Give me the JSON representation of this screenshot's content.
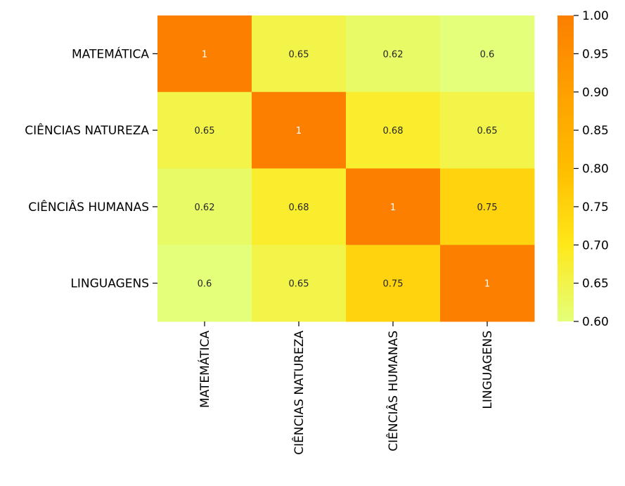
{
  "chart_data": {
    "type": "heatmap",
    "row_labels": [
      "MATEMÁTICA",
      "CIÊNCIAS NATUREZA",
      "CIÊNCIÂS HUMANAS",
      "LINGUAGENS"
    ],
    "col_labels": [
      "MATEMÁTICA",
      "CIÊNCIAS NATUREZA",
      "CIÊNCIÂS HUMANAS",
      "LINGUAGENS"
    ],
    "values": [
      [
        1,
        0.65,
        0.62,
        0.6
      ],
      [
        0.65,
        1,
        0.68,
        0.65
      ],
      [
        0.62,
        0.68,
        1,
        0.75
      ],
      [
        0.6,
        0.65,
        0.75,
        1
      ]
    ],
    "annotations": [
      [
        "1",
        "0.65",
        "0.62",
        "0.6"
      ],
      [
        "0.65",
        "1",
        "0.68",
        "0.65"
      ],
      [
        "0.62",
        "0.68",
        "1",
        "0.75"
      ],
      [
        "0.6",
        "0.65",
        "0.75",
        "1"
      ]
    ],
    "colorbar": {
      "range": [
        0.6,
        1.0
      ],
      "ticks": [
        "0.60",
        "0.65",
        "0.70",
        "0.75",
        "0.80",
        "0.85",
        "0.90",
        "0.95",
        "1.00"
      ]
    },
    "colormap": "Wistia",
    "colors": [
      "#e4ff7a",
      "#ffe81a",
      "#ffbd00",
      "#ffa000",
      "#fc7f00"
    ],
    "xlabel": "",
    "ylabel": "",
    "title": ""
  }
}
